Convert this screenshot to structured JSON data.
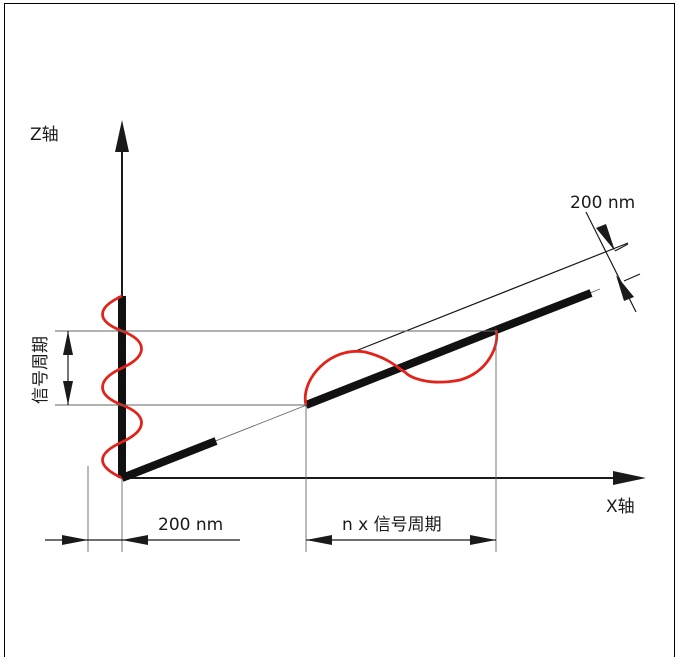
{
  "labels": {
    "z_axis": "Z轴",
    "x_axis": "X轴",
    "signal_period": "信号周期",
    "n_signal_period": "n x 信号周期",
    "nm_top": "200 nm",
    "nm_bottom": "200 nm"
  },
  "colors": {
    "wave": "#e2231a",
    "line": "#1a1a1a",
    "frame": "#000000"
  }
}
